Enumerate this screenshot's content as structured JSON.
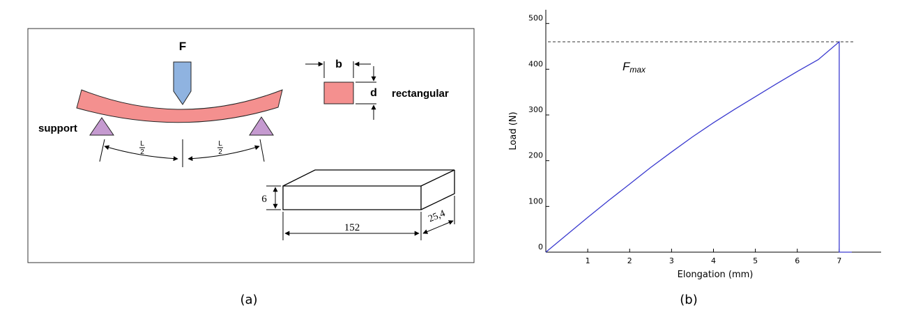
{
  "panel_a": {
    "caption": "(a)",
    "force_label": "F",
    "support_label": "support",
    "span_half_num": "L",
    "span_half_den": "2",
    "section_width_label": "b",
    "section_depth_label": "d",
    "section_shape_label": "rectangular",
    "specimen_height": "6",
    "specimen_length": "152",
    "specimen_width": "25,4",
    "colors": {
      "beam": "#f4908f",
      "indenter": "#8fb3e0",
      "support": "#c59ad0"
    }
  },
  "panel_b": {
    "caption": "(b)",
    "fmax_label_main": "F",
    "fmax_label_sub": "max"
  },
  "chart_data": {
    "type": "line",
    "xlabel": "Elongation (mm)",
    "ylabel": "Load (N)",
    "x_ticks": [
      1,
      2,
      3,
      4,
      5,
      6,
      7
    ],
    "y_ticks": [
      0,
      100,
      200,
      300,
      400,
      500
    ],
    "xlim": [
      0,
      8.0
    ],
    "ylim": [
      0,
      530
    ],
    "series": [
      {
        "color": "#3a3acf",
        "x": [
          0,
          0.5,
          1,
          1.5,
          2,
          2.5,
          3,
          3.5,
          4,
          4.5,
          5,
          5.5,
          6,
          6.5,
          7.0,
          7.0,
          7.3
        ],
        "y": [
          0,
          38,
          76,
          113,
          149,
          185,
          219,
          252,
          283,
          312,
          340,
          368,
          395,
          421,
          460,
          0,
          0
        ]
      }
    ],
    "fmax": 460,
    "fmax_line": "dashed"
  }
}
